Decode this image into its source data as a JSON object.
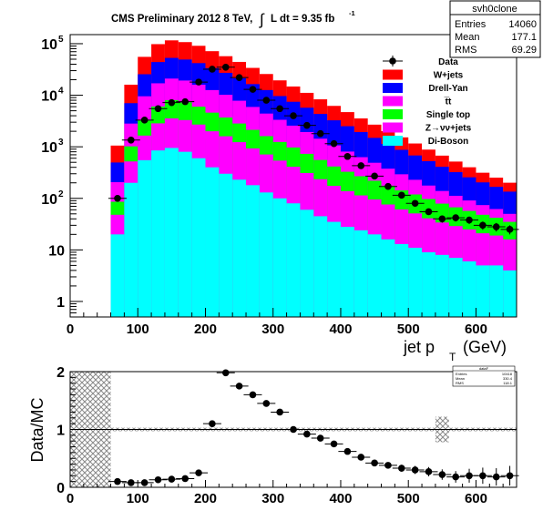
{
  "chart_data": [
    {
      "type": "bar",
      "stacked": true,
      "ylog": true,
      "title": "CMS Preliminary 2012 8 TeV,",
      "title_integral": "∫",
      "title_lumi_text": "L dt = 9.35 fb",
      "title_lumi_sup": "-1",
      "xlabel_main": "jet p",
      "xlabel_sub": "T",
      "xlabel_unit": "(GeV)",
      "ylabel": "",
      "xlim": [
        0,
        660
      ],
      "ylim": [
        0.5,
        150000
      ],
      "x_ticks": [
        {
          "v": 0,
          "label": "0"
        },
        {
          "v": 100,
          "label": "100"
        },
        {
          "v": 200,
          "label": "200"
        },
        {
          "v": 300,
          "label": "300"
        },
        {
          "v": 400,
          "label": "400"
        },
        {
          "v": 500,
          "label": "500"
        },
        {
          "v": 600,
          "label": "600"
        }
      ],
      "y_ticks": [
        {
          "v": 1,
          "label": "1"
        },
        {
          "v": 10,
          "label": "10"
        },
        {
          "v": 100,
          "label": "10",
          "sup": "2"
        },
        {
          "v": 1000,
          "label": "10",
          "sup": "3"
        },
        {
          "v": 10000,
          "label": "10",
          "sup": "4"
        },
        {
          "v": 100000,
          "label": "10",
          "sup": "5"
        }
      ],
      "bin_edges": [
        60,
        80,
        100,
        120,
        140,
        160,
        180,
        200,
        220,
        240,
        260,
        280,
        300,
        320,
        340,
        360,
        380,
        400,
        420,
        440,
        460,
        480,
        500,
        520,
        540,
        560,
        580,
        600,
        620,
        640,
        660
      ],
      "stack_series": [
        {
          "name": "Di-Boson",
          "color": "#00ffff",
          "values": [
            20,
            200,
            550,
            850,
            950,
            800,
            600,
            400,
            300,
            230,
            180,
            130,
            100,
            80,
            60,
            45,
            35,
            28,
            24,
            20,
            16,
            13,
            11,
            9,
            8,
            7,
            6,
            5,
            5,
            4
          ]
        },
        {
          "name": "Z→νν+jets",
          "color": "#ff00ff",
          "values": [
            28,
            320,
            1100,
            2000,
            2600,
            2500,
            2100,
            1600,
            1300,
            1000,
            750,
            580,
            440,
            330,
            250,
            190,
            140,
            110,
            90,
            75,
            60,
            48,
            40,
            32,
            26,
            22,
            19,
            16,
            14,
            12
          ]
        },
        {
          "name": "Single top",
          "color": "#00ff00",
          "values": [
            38,
            500,
            1700,
            3200,
            4500,
            4000,
            3300,
            2600,
            2100,
            1600,
            1200,
            900,
            700,
            560,
            420,
            320,
            240,
            190,
            155,
            125,
            100,
            82,
            68,
            56,
            45,
            38,
            32,
            27,
            23,
            19
          ]
        },
        {
          "name": "t̅t",
          "color": "#ff00ff",
          "values": [
            120,
            1800,
            6200,
            11000,
            13000,
            12000,
            10000,
            8000,
            6500,
            5000,
            3800,
            2800,
            2100,
            1600,
            1200,
            880,
            650,
            480,
            360,
            270,
            200,
            150,
            110,
            80,
            60,
            45,
            34,
            26,
            20,
            15
          ]
        },
        {
          "name": "Drell-Yan",
          "color": "#0000ff",
          "values": [
            290,
            4200,
            16000,
            27000,
            32000,
            30000,
            26000,
            21000,
            17000,
            13500,
            10500,
            8200,
            6300,
            4900,
            3800,
            2900,
            2200,
            1700,
            1300,
            1000,
            760,
            580,
            450,
            350,
            270,
            210,
            165,
            130,
            105,
            85
          ]
        },
        {
          "name": "W+jets",
          "color": "#ff0000",
          "values": [
            560,
            9000,
            30000,
            54000,
            63000,
            58000,
            49000,
            38000,
            30000,
            23000,
            17500,
            13200,
            9800,
            7300,
            5400,
            4000,
            2950,
            2200,
            1620,
            1200,
            880,
            650,
            480,
            355,
            265,
            195,
            145,
            110,
            85,
            66
          ]
        }
      ],
      "data_points": {
        "name": "Data",
        "x": [
          70,
          90,
          110,
          130,
          150,
          170,
          190,
          210,
          230,
          250,
          270,
          290,
          310,
          330,
          350,
          370,
          390,
          410,
          430,
          450,
          470,
          490,
          510,
          530,
          550,
          570,
          590,
          610,
          630,
          650
        ],
        "y": [
          100,
          1350,
          3300,
          5500,
          7200,
          7500,
          18000,
          32000,
          35000,
          22000,
          13000,
          8000,
          5500,
          4000,
          2600,
          1800,
          1150,
          650,
          430,
          270,
          170,
          115,
          80,
          55,
          40,
          42,
          38,
          30,
          28,
          25
        ]
      },
      "stats_box": {
        "name": "svh0clone",
        "rows": [
          {
            "label": "Entries",
            "value": "14060"
          },
          {
            "label": "Mean",
            "value": "177.1"
          },
          {
            "label": "RMS",
            "value": "69.29"
          }
        ]
      },
      "legend_placement": "top-right"
    },
    {
      "type": "scatter",
      "title": "",
      "ylabel": "Data/MC",
      "xlim": [
        0,
        660
      ],
      "ylim": [
        0,
        2
      ],
      "x_ticks": [
        {
          "v": 0,
          "label": "0"
        },
        {
          "v": 100,
          "label": "100"
        },
        {
          "v": 200,
          "label": "200"
        },
        {
          "v": 300,
          "label": "300"
        },
        {
          "v": 400,
          "label": "400"
        },
        {
          "v": 500,
          "label": "500"
        },
        {
          "v": 600,
          "label": "600"
        }
      ],
      "y_ticks": [
        {
          "v": 0,
          "label": "0"
        },
        {
          "v": 1,
          "label": "1"
        },
        {
          "v": 2,
          "label": "2"
        }
      ],
      "reference_line": 1,
      "x": [
        70,
        90,
        110,
        130,
        150,
        170,
        190,
        210,
        230,
        250,
        270,
        290,
        310,
        330,
        350,
        370,
        390,
        410,
        430,
        450,
        470,
        490,
        510,
        530,
        550,
        570,
        590,
        610,
        630,
        650
      ],
      "y": [
        0.1,
        0.08,
        0.08,
        0.13,
        0.14,
        0.15,
        0.25,
        1.1,
        1.98,
        1.75,
        1.6,
        1.45,
        1.3,
        1.0,
        0.92,
        0.85,
        0.75,
        0.62,
        0.52,
        0.42,
        0.38,
        0.33,
        0.3,
        0.27,
        0.22,
        0.18,
        0.2,
        0.2,
        0.18,
        0.2
      ],
      "y_err": [
        0.03,
        0.02,
        0.02,
        0.02,
        0.02,
        0.02,
        0.02,
        0.03,
        0.03,
        0.03,
        0.03,
        0.03,
        0.03,
        0.03,
        0.03,
        0.03,
        0.03,
        0.04,
        0.04,
        0.05,
        0.05,
        0.06,
        0.07,
        0.08,
        0.09,
        0.1,
        0.12,
        0.14,
        0.15,
        0.17
      ],
      "uncertainty_bands": [
        {
          "x0": 0,
          "x1": 60,
          "y0": 0,
          "y1": 2
        },
        {
          "x0": 60,
          "x1": 540,
          "y0": 0.97,
          "y1": 1.03
        },
        {
          "x0": 540,
          "x1": 560,
          "y0": 0.78,
          "y1": 1.22
        },
        {
          "x0": 560,
          "x1": 660,
          "y0": 0.97,
          "y1": 1.03
        }
      ],
      "stats_box": {
        "name": "dataF",
        "rows": [
          {
            "label": "Entries",
            "value": "10418"
          },
          {
            "label": "Mean",
            "value": "330.4"
          },
          {
            "label": "RMS",
            "value": "118.1"
          }
        ]
      }
    }
  ]
}
